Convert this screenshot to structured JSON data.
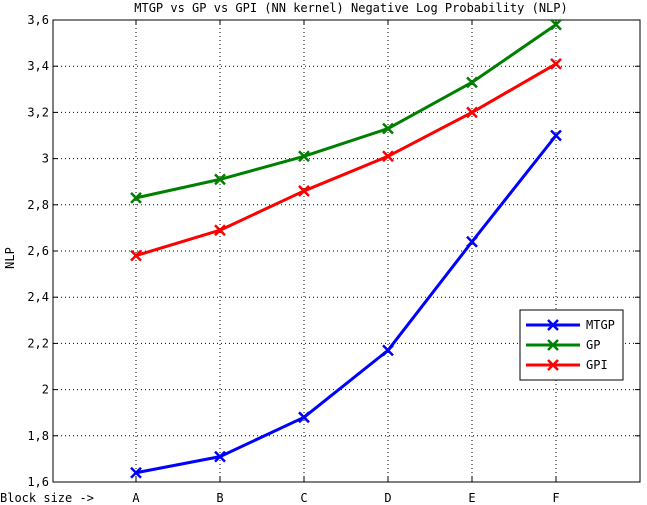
{
  "chart_data": {
    "type": "line",
    "title": "MTGP vs GP vs GPI (NN kernel) Negative Log Probability (NLP)",
    "xlabel": "Block size ->",
    "ylabel": "NLP",
    "categories": [
      "A",
      "B",
      "C",
      "D",
      "E",
      "F"
    ],
    "ylim": [
      1.6,
      3.6
    ],
    "yticks": [
      1.6,
      1.8,
      2,
      2.2,
      2.4,
      2.6,
      2.8,
      3,
      3.2,
      3.4,
      3.6
    ],
    "ytick_labels": [
      "1,6",
      "1,8",
      "2",
      "2,2",
      "2,4",
      "2,6",
      "2,8",
      "3",
      "3,2",
      "3,4",
      "3,6"
    ],
    "grid": true,
    "legend_position": "lower-right",
    "series": [
      {
        "name": "MTGP",
        "color": "#0000ff",
        "marker": "x",
        "values": [
          1.64,
          1.71,
          1.88,
          2.17,
          2.64,
          3.1
        ]
      },
      {
        "name": "GP",
        "color": "#008000",
        "marker": "x",
        "values": [
          2.83,
          2.91,
          3.01,
          3.13,
          3.33,
          3.58
        ]
      },
      {
        "name": "GPI",
        "color": "#ff0000",
        "marker": "x",
        "values": [
          2.58,
          2.69,
          2.86,
          3.01,
          3.2,
          3.41
        ]
      }
    ]
  }
}
